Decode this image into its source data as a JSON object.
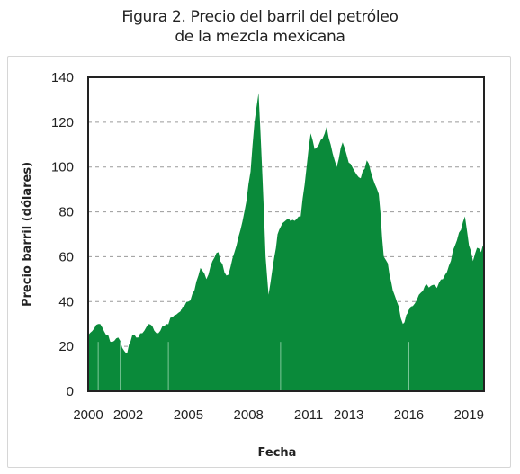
{
  "title_line1": "Figura 2. Precio del barril del petróleo",
  "title_line2": "de la mezcla mexicana",
  "colors": {
    "fill": "#0a8a3a",
    "grid": "#9a9a9a",
    "axis": "#222222"
  },
  "chart_data": {
    "type": "area",
    "xlabel": "Fecha",
    "ylabel": "Precio barril (dólares)",
    "ylim": [
      0,
      140
    ],
    "xlim": [
      2000,
      2019.75
    ],
    "grid": true,
    "yticks": [
      "0",
      "20",
      "40",
      "60",
      "80",
      "100",
      "120",
      "140"
    ],
    "xticks": [
      "2000",
      "2002",
      "2005",
      "2008",
      "2011",
      "2013",
      "2016",
      "2019"
    ],
    "x": [
      2000.0,
      2000.3,
      2000.6,
      2000.9,
      2001.2,
      2001.5,
      2001.8,
      2001.95,
      2002.2,
      2002.5,
      2002.8,
      2003.0,
      2003.3,
      2003.6,
      2003.9,
      2004.2,
      2004.5,
      2004.8,
      2005.0,
      2005.3,
      2005.6,
      2005.9,
      2006.2,
      2006.5,
      2006.8,
      2007.0,
      2007.3,
      2007.6,
      2007.9,
      2008.1,
      2008.3,
      2008.5,
      2008.7,
      2008.85,
      2009.0,
      2009.2,
      2009.45,
      2009.7,
      2010.0,
      2010.3,
      2010.6,
      2010.9,
      2011.1,
      2011.3,
      2011.6,
      2011.9,
      2012.1,
      2012.4,
      2012.7,
      2013.0,
      2013.3,
      2013.6,
      2013.9,
      2014.2,
      2014.5,
      2014.75,
      2014.95,
      2015.2,
      2015.4,
      2015.7,
      2015.95,
      2016.2,
      2016.5,
      2016.8,
      2017.1,
      2017.4,
      2017.7,
      2018.0,
      2018.3,
      2018.6,
      2018.8,
      2019.0,
      2019.2,
      2019.4,
      2019.6,
      2019.75
    ],
    "values": [
      25,
      28,
      30,
      25,
      22,
      24,
      18,
      17,
      25,
      24,
      27,
      30,
      27,
      27,
      30,
      33,
      35,
      38,
      40,
      45,
      55,
      50,
      58,
      62,
      53,
      52,
      62,
      72,
      85,
      98,
      120,
      133,
      95,
      60,
      43,
      55,
      70,
      75,
      77,
      76,
      78,
      100,
      115,
      108,
      112,
      118,
      110,
      100,
      111,
      102,
      98,
      95,
      103,
      95,
      88,
      60,
      57,
      45,
      40,
      30,
      35,
      38,
      43,
      47,
      47,
      46,
      50,
      56,
      65,
      72,
      78,
      65,
      58,
      64,
      62,
      66
    ]
  }
}
